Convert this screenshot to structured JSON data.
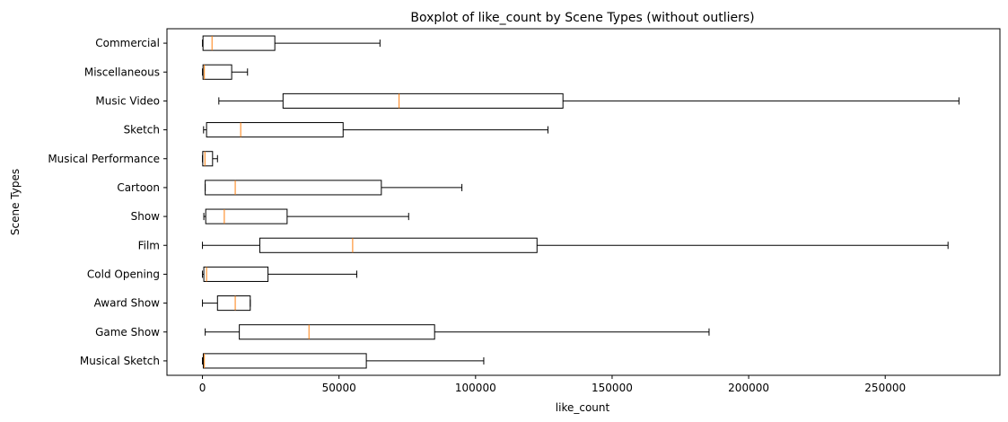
{
  "chart_data": {
    "type": "boxplot",
    "orientation": "horizontal",
    "title": "Boxplot of like_count by Scene Types (without outliers)",
    "xlabel": "like_count",
    "ylabel": "Scene Types",
    "xlim": [
      -13000,
      292000
    ],
    "xticks": [
      0,
      50000,
      100000,
      150000,
      200000,
      250000
    ],
    "xtick_labels": [
      "0",
      "50000",
      "100000",
      "150000",
      "200000",
      "250000"
    ],
    "grid": false,
    "colors": {
      "box": "#000000",
      "median": "#ff7f0e",
      "background": "#ffffff"
    },
    "categories": [
      "Commercial",
      "Miscellaneous",
      "Music Video",
      "Sketch",
      "Musical Performance",
      "Cartoon",
      "Show",
      "Film",
      "Cold Opening",
      "Award Show",
      "Game Show",
      "Musical Sketch"
    ],
    "series": [
      {
        "category": "Commercial",
        "whislo": 0,
        "q1": 200,
        "med": 3500,
        "q3": 26500,
        "whishi": 65000
      },
      {
        "category": "Miscellaneous",
        "whislo": 0,
        "q1": 200,
        "med": 700,
        "q3": 10700,
        "whishi": 16500
      },
      {
        "category": "Music Video",
        "whislo": 6000,
        "q1": 29500,
        "med": 72000,
        "q3": 132000,
        "whishi": 277000
      },
      {
        "category": "Sketch",
        "whislo": 400,
        "q1": 1500,
        "med": 14000,
        "q3": 51500,
        "whishi": 126500
      },
      {
        "category": "Musical Performance",
        "whislo": 0,
        "q1": 100,
        "med": 900,
        "q3": 3700,
        "whishi": 5500
      },
      {
        "category": "Cartoon",
        "whislo": 1000,
        "q1": 1000,
        "med": 12000,
        "q3": 65500,
        "whishi": 95000
      },
      {
        "category": "Show",
        "whislo": 500,
        "q1": 1200,
        "med": 8000,
        "q3": 31000,
        "whishi": 75500
      },
      {
        "category": "Film",
        "whislo": 0,
        "q1": 21000,
        "med": 55000,
        "q3": 122500,
        "whishi": 273000
      },
      {
        "category": "Cold Opening",
        "whislo": 0,
        "q1": 500,
        "med": 1500,
        "q3": 24000,
        "whishi": 56500
      },
      {
        "category": "Award Show",
        "whislo": 0,
        "q1": 5500,
        "med": 12000,
        "q3": 17500,
        "whishi": 17500
      },
      {
        "category": "Game Show",
        "whislo": 1000,
        "q1": 13500,
        "med": 39000,
        "q3": 85000,
        "whishi": 185500
      },
      {
        "category": "Musical Sketch",
        "whislo": 0,
        "q1": 300,
        "med": 700,
        "q3": 60000,
        "whishi": 103000
      }
    ]
  }
}
